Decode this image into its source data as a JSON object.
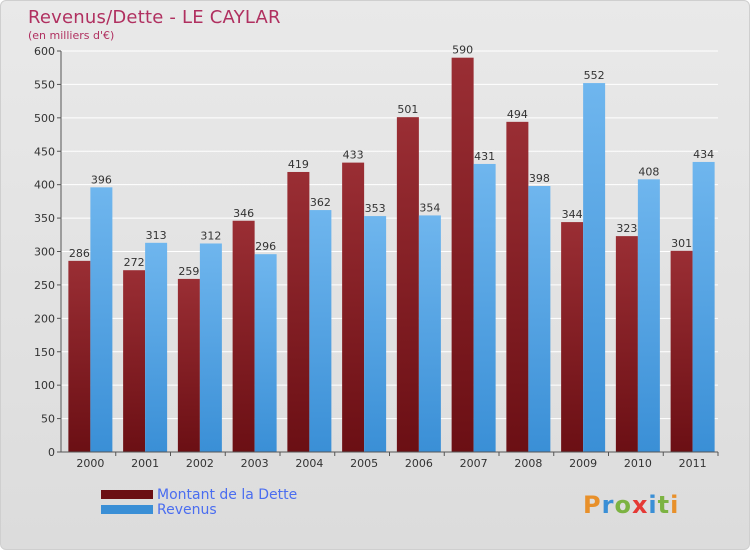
{
  "header": {
    "title": "Revenus/Dette - LE CAYLAR",
    "subtitle": "(en milliers d'€)"
  },
  "legend": {
    "items": [
      {
        "label": "Montant de la Dette",
        "color": "#6b0f14"
      },
      {
        "label": "Revenus",
        "color": "#3a8fd6"
      }
    ]
  },
  "logo": {
    "text": "Proxiti",
    "letters": [
      "P",
      "r",
      "o",
      "x",
      "i",
      "t",
      "i"
    ],
    "colors": [
      "#e8902a",
      "#3a8fd6",
      "#7cb342",
      "#e53935",
      "#3a8fd6",
      "#7cb342",
      "#e8902a"
    ]
  },
  "colors": {
    "dette": "#6b0f14",
    "dette_light": "#9a2e34",
    "revenus": "#3a8fd6",
    "revenus_light": "#6fb6ee",
    "grid": "#ffffff",
    "axis_text": "#333333",
    "value_text": "#333333"
  },
  "chart_data": {
    "type": "bar",
    "title": "Revenus/Dette - LE CAYLAR",
    "ylabel": "(en milliers d'€)",
    "xlabel": "",
    "ylim": [
      0,
      600
    ],
    "yticks": [
      0,
      50,
      100,
      150,
      200,
      250,
      300,
      350,
      400,
      450,
      500,
      550,
      600
    ],
    "categories": [
      "2000",
      "2001",
      "2002",
      "2003",
      "2004",
      "2005",
      "2006",
      "2007",
      "2008",
      "2009",
      "2010",
      "2011"
    ],
    "series": [
      {
        "name": "Montant de la Dette",
        "values": [
          286,
          272,
          259,
          346,
          419,
          433,
          501,
          590,
          494,
          344,
          323,
          301
        ]
      },
      {
        "name": "Revenus",
        "values": [
          396,
          313,
          312,
          296,
          362,
          353,
          354,
          431,
          398,
          552,
          408,
          434
        ]
      }
    ],
    "legend_position": "bottom-left",
    "grid": true
  }
}
